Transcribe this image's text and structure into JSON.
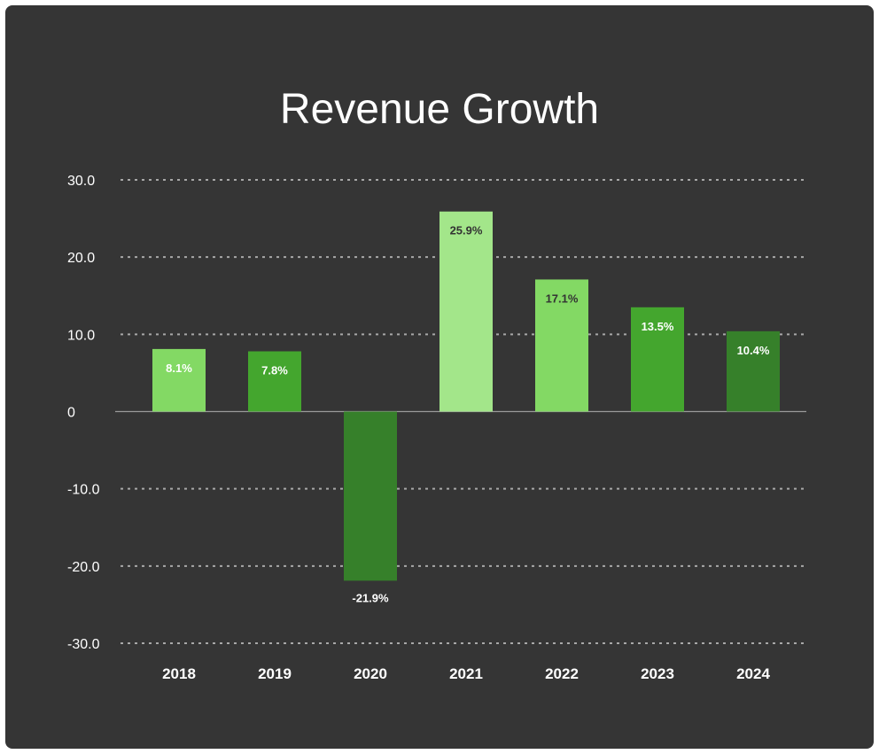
{
  "chart_data": {
    "type": "bar",
    "title": "Revenue Growth",
    "categories": [
      "2018",
      "2019",
      "2020",
      "2021",
      "2022",
      "2023",
      "2024"
    ],
    "values": [
      8.1,
      7.8,
      -21.9,
      25.9,
      17.1,
      13.5,
      10.4
    ],
    "data_labels": [
      "8.1%",
      "7.8%",
      "-21.9%",
      "25.9%",
      "17.1%",
      "13.5%",
      "10.4%"
    ],
    "ylim": [
      -30,
      30
    ],
    "yticks": [
      30,
      20,
      10,
      0,
      -10,
      -20,
      -30
    ],
    "ytick_labels": [
      "30.0",
      "20.0",
      "10.0",
      "0",
      "-10.0",
      "-20.0",
      "-30.0"
    ],
    "bar_colors": [
      "#83d964",
      "#44a62e",
      "#36802a",
      "#a3e68a",
      "#83d964",
      "#44a62e",
      "#36802a"
    ],
    "label_colors": [
      "#ffffff",
      "#ffffff",
      "#ffffff",
      "#333333",
      "#333333",
      "#ffffff",
      "#ffffff"
    ],
    "grid": true,
    "xlabel": "",
    "ylabel": ""
  }
}
